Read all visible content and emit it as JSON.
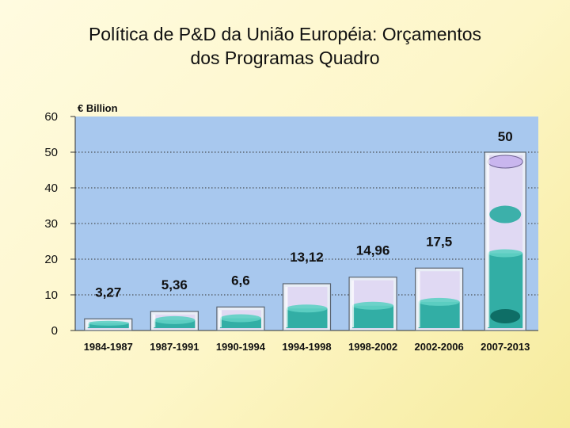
{
  "slide": {
    "title_line1": "Política de P&D da União Européia: Orçamentos",
    "title_line2": "dos Programas Quadro"
  },
  "chart_data": {
    "type": "bar",
    "title": "Política de P&D da União Européia: Orçamentos dos Programas Quadro",
    "unit_label": "€ Billion",
    "categories": [
      "1984-1987",
      "1987-1991",
      "1990-1994",
      "1994-1998",
      "1998-2002",
      "2002-2006",
      "2007-2013"
    ],
    "values": [
      3.27,
      5.36,
      6.6,
      13.12,
      14.96,
      17.5,
      50
    ],
    "data_labels": [
      "3,27",
      "5,36",
      "6,6",
      "13,12",
      "14,96",
      "17,5",
      "50"
    ],
    "ylim": [
      0,
      60
    ],
    "yticks": [
      0,
      10,
      20,
      30,
      40,
      50,
      60
    ],
    "grid": true,
    "colors": {
      "plot_background": "#a8c8ee",
      "glass_edge": "#5a6470",
      "liquid": "#1fa89c",
      "liquid_dark": "#0e6e66",
      "glass_top": "#d9c8f0"
    }
  }
}
